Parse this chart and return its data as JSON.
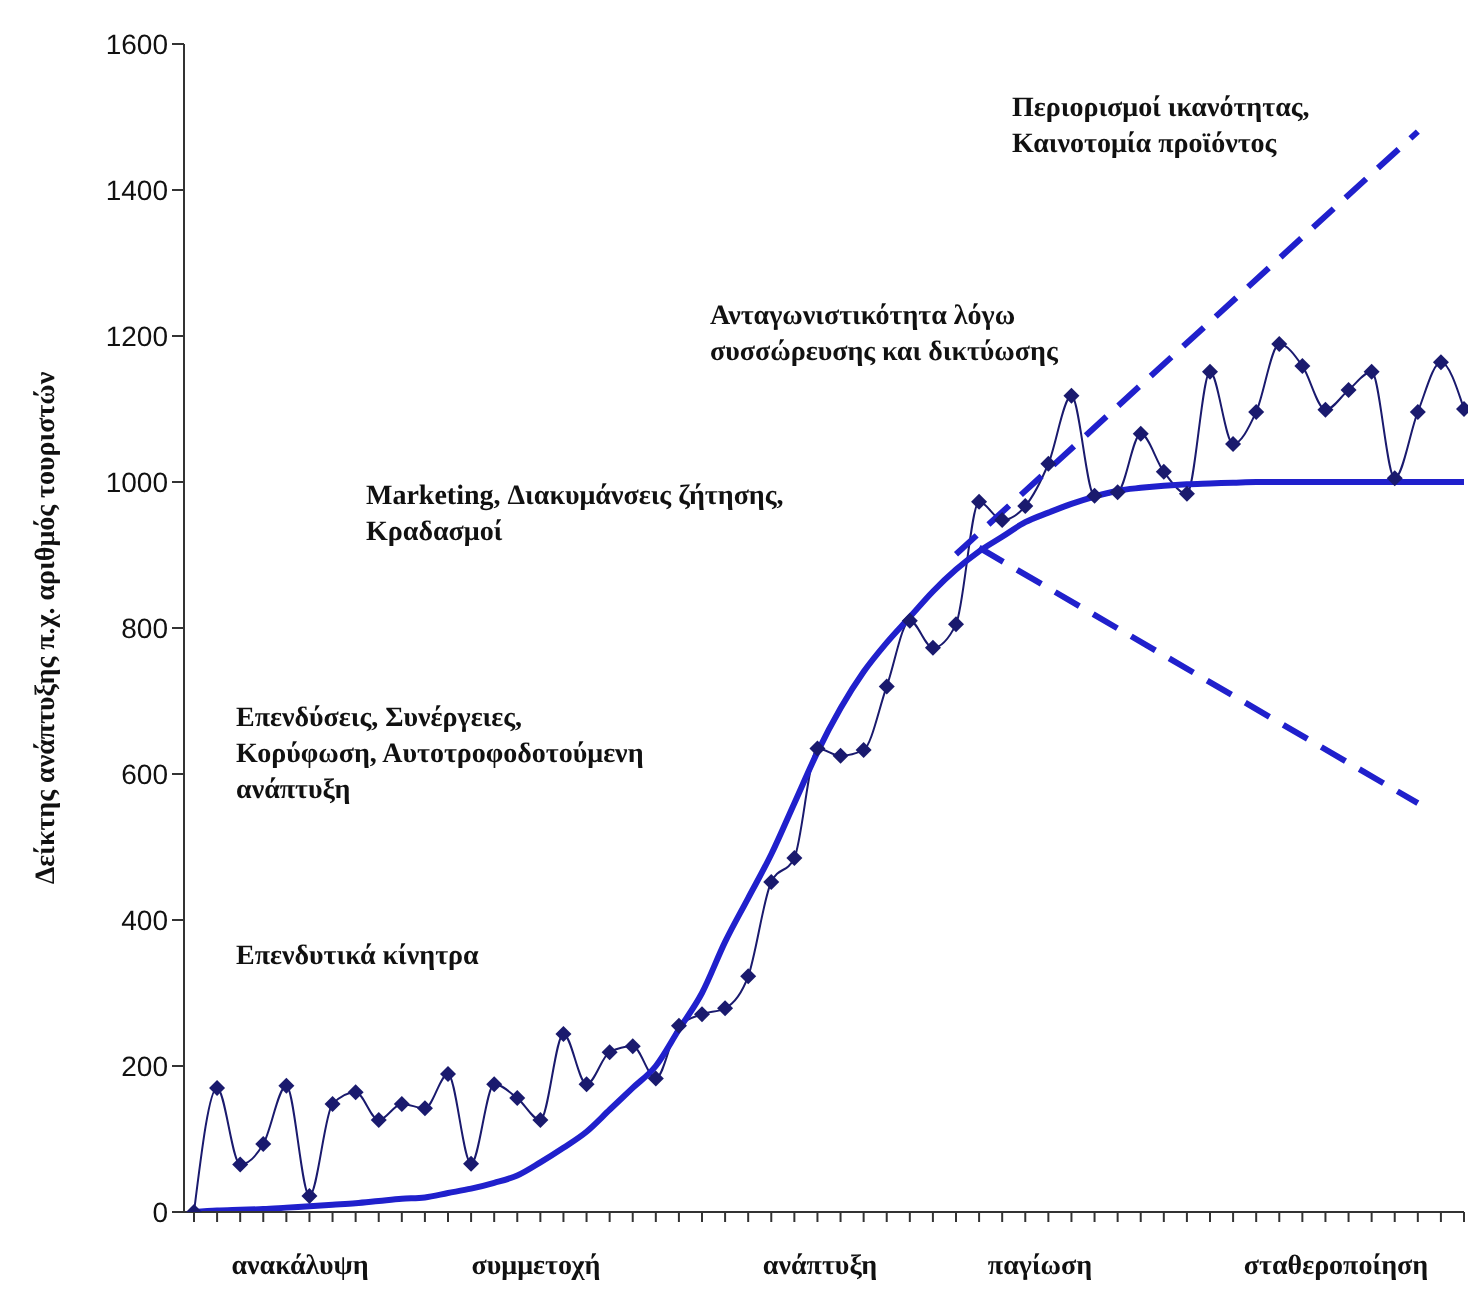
{
  "chart_data": {
    "type": "line",
    "ylabel": "Δείκτης ανάπτυξης π.χ. αριθμός τουριστών",
    "categories": [
      null,
      null,
      null,
      null,
      null,
      null,
      null,
      null,
      null,
      null,
      null,
      null,
      null,
      null,
      null,
      null,
      null,
      null,
      null,
      null,
      null,
      null,
      null,
      null,
      null,
      null,
      null,
      null,
      null,
      null,
      null,
      null,
      null,
      null,
      null,
      null,
      null,
      null,
      null,
      null,
      null,
      null,
      null,
      null,
      null,
      null,
      null,
      null,
      null,
      null,
      null,
      null,
      null,
      null,
      null,
      null
    ],
    "ylim": [
      0,
      1600
    ],
    "yticks": [
      0,
      200,
      400,
      600,
      800,
      1000,
      1200,
      1400,
      1600
    ],
    "grid": false,
    "legend": false,
    "series": [
      {
        "color": "#1a1a6e",
        "marker": "diamond",
        "line_style": "solid",
        "values": [
          0,
          170,
          65,
          93,
          173,
          22,
          148,
          164,
          126,
          148,
          142,
          189,
          66,
          175,
          156,
          126,
          244,
          175,
          219,
          227,
          183,
          255,
          271,
          279,
          323,
          452,
          485,
          635,
          625,
          633,
          720,
          810,
          773,
          805,
          973,
          948,
          967,
          1025,
          1118,
          981,
          986,
          1066,
          1014,
          984,
          1151,
          1052,
          1096,
          1189,
          1159,
          1099,
          1126,
          1151,
          1005,
          1096,
          1164,
          1100
        ]
      },
      {
        "color": "#2020cc",
        "marker": "none",
        "line_style": "solid",
        "values": [
          0,
          2,
          3,
          4,
          6,
          8,
          10,
          12,
          15,
          18,
          20,
          26,
          32,
          40,
          50,
          68,
          88,
          110,
          140,
          170,
          200,
          250,
          300,
          370,
          430,
          490,
          560,
          630,
          690,
          740,
          780,
          815,
          850,
          880,
          905,
          925,
          945,
          958,
          970,
          980,
          988,
          992,
          995,
          997,
          998,
          999,
          1000,
          1000,
          1000,
          1000,
          1000,
          1000,
          1000,
          1000,
          1000,
          1000
        ]
      },
      {
        "color": "#2020cc",
        "marker": "none",
        "line_style": "dashed",
        "values": [
          null,
          null,
          null,
          null,
          null,
          null,
          null,
          null,
          null,
          null,
          null,
          null,
          null,
          null,
          null,
          null,
          null,
          null,
          null,
          null,
          null,
          null,
          null,
          null,
          null,
          null,
          null,
          null,
          null,
          null,
          null,
          null,
          null,
          901,
          null,
          null,
          null,
          null,
          null,
          null,
          null,
          null,
          null,
          null,
          null,
          null,
          null,
          null,
          null,
          null,
          null,
          null,
          null,
          1480,
          null,
          null
        ]
      },
      {
        "color": "#2020cc",
        "marker": "none",
        "line_style": "dashed",
        "values": [
          null,
          null,
          null,
          null,
          null,
          null,
          null,
          null,
          null,
          null,
          null,
          null,
          null,
          null,
          null,
          null,
          null,
          null,
          null,
          null,
          null,
          null,
          null,
          null,
          null,
          null,
          null,
          null,
          null,
          null,
          null,
          null,
          null,
          null,
          910,
          null,
          null,
          null,
          null,
          null,
          null,
          null,
          null,
          null,
          null,
          null,
          null,
          null,
          null,
          null,
          null,
          null,
          null,
          560,
          null,
          null
        ]
      }
    ],
    "annotations": [
      "Περιορισμοί ικανότητας,\nΚαινοτομία προϊόντος",
      "Ανταγωνιστικότητα λόγω\nσυσσώρευσης και δικτύωσης",
      "Marketing, Διακυμάνσεις ζήτησης,\nΚραδασμοί",
      "Επενδύσεις, Συνέργειες,\nΚορύφωση, Αυτοτροφοδοτούμενη\nανάπτυξη",
      "Επενδυτικά κίνητρα",
      "ανακάλυψη",
      "συμμετοχή",
      "ανάπτυξη",
      "παγίωση",
      "σταθεροποίηση"
    ]
  }
}
